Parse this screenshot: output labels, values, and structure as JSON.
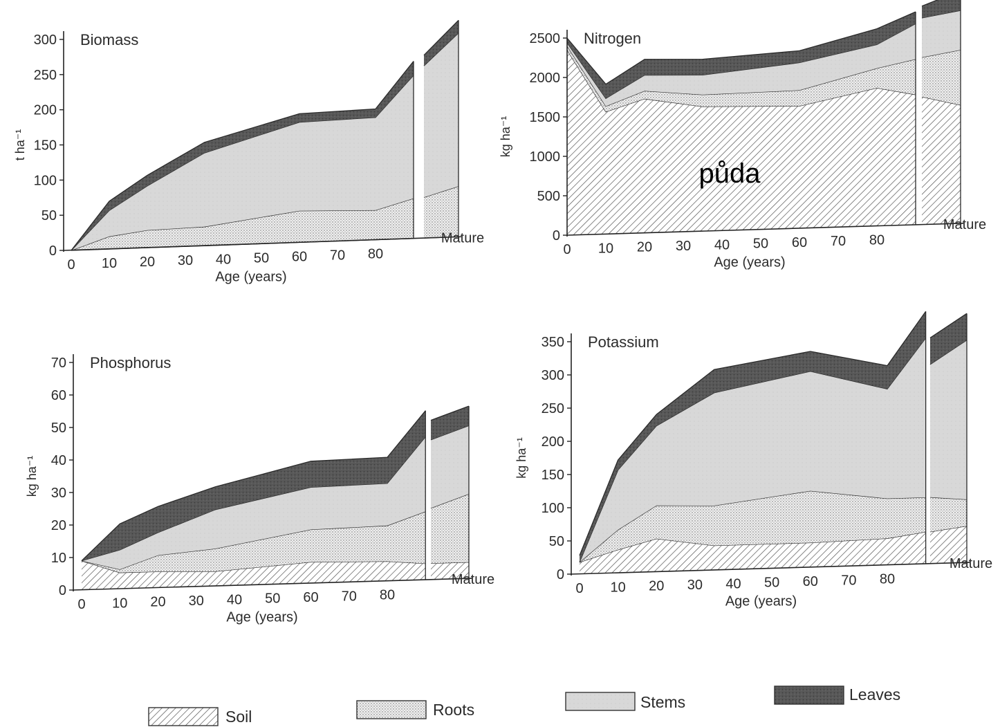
{
  "legend": {
    "items": [
      {
        "label": "Soil",
        "pattern": "soil"
      },
      {
        "label": "Roots",
        "pattern": "roots"
      },
      {
        "label": "Stems",
        "pattern": "stems"
      },
      {
        "label": "Leaves",
        "pattern": "leaves"
      }
    ]
  },
  "overlay_label": "půda",
  "colors": {
    "soil_stroke": "#5a5a5a",
    "roots_fill": "#ebebeb",
    "stems_fill": "#d6d6d6",
    "leaves_fill": "#555555",
    "axis": "#222222"
  },
  "chart_data": [
    {
      "type": "area",
      "title": "Biomass",
      "xlabel": "Age (years)",
      "ylabel": "t ha⁻¹",
      "x_ticks": [
        "0",
        "10",
        "20",
        "30",
        "40",
        "50",
        "60",
        "70",
        "80"
      ],
      "x_extra_label": "Mature",
      "y_ticks": [
        0,
        50,
        100,
        150,
        200,
        250,
        300
      ],
      "ylim": [
        0,
        300
      ],
      "stacked": true,
      "segments": [
        {
          "x": [
            0,
            10,
            20,
            35,
            60,
            80,
            90
          ],
          "series": [
            {
              "name": "Soil",
              "values": [
                0,
                0,
                0,
                0,
                0,
                0,
                0
              ]
            },
            {
              "name": "Roots",
              "values": [
                0,
                18,
                25,
                27,
                45,
                42,
                57
              ]
            },
            {
              "name": "Stems",
              "values": [
                0,
                37,
                63,
                105,
                126,
                132,
                175
              ]
            },
            {
              "name": "Leaves",
              "values": [
                0,
                13,
                15,
                15,
                12,
                12,
                20
              ]
            }
          ]
        },
        {
          "x": [
            "Mature-start",
            "Mature"
          ],
          "series": [
            {
              "name": "Soil",
              "values": [
                0,
                0
              ]
            },
            {
              "name": "Roots",
              "values": [
                58,
                72
              ]
            },
            {
              "name": "Stems",
              "values": [
                187,
                218
              ]
            },
            {
              "name": "Leaves",
              "values": [
                15,
                18
              ]
            }
          ]
        }
      ]
    },
    {
      "type": "area",
      "title": "Nitrogen",
      "xlabel": "Age (years)",
      "ylabel": "kg ha⁻¹",
      "x_ticks": [
        "0",
        "10",
        "20",
        "30",
        "40",
        "50",
        "60",
        "70",
        "80"
      ],
      "x_extra_label": "Mature",
      "y_ticks": [
        0,
        500,
        1000,
        1500,
        2000,
        2500
      ],
      "ylim": [
        0,
        2500
      ],
      "stacked": true,
      "segments": [
        {
          "x": [
            0,
            10,
            20,
            35,
            60,
            80,
            90
          ],
          "series": [
            {
              "name": "Soil",
              "values": [
                2350,
                1550,
                1700,
                1580,
                1550,
                1750,
                1650
              ]
            },
            {
              "name": "Roots",
              "values": [
                50,
                70,
                100,
                150,
                200,
                250,
                450
              ]
            },
            {
              "name": "Stems",
              "values": [
                40,
                100,
                200,
                250,
                350,
                300,
                450
              ]
            },
            {
              "name": "Leaves",
              "values": [
                60,
                180,
                200,
                200,
                150,
                200,
                150
              ]
            }
          ]
        },
        {
          "x": [
            "Mature-start",
            "Mature"
          ],
          "series": [
            {
              "name": "Soil",
              "values": [
                1620,
                1500
              ]
            },
            {
              "name": "Roots",
              "values": [
                500,
                700
              ]
            },
            {
              "name": "Stems",
              "values": [
                500,
                500
              ]
            },
            {
              "name": "Leaves",
              "values": [
                150,
                250
              ]
            }
          ]
        }
      ]
    },
    {
      "type": "area",
      "title": "Phosphorus",
      "xlabel": "Age (years)",
      "ylabel": "kg ha⁻¹",
      "x_ticks": [
        "0",
        "10",
        "20",
        "30",
        "40",
        "50",
        "60",
        "70",
        "80"
      ],
      "x_extra_label": "Mature",
      "y_ticks": [
        0,
        10,
        20,
        30,
        40,
        50,
        60,
        70
      ],
      "ylim": [
        0,
        70
      ],
      "stacked": true,
      "segments": [
        {
          "x": [
            0,
            10,
            20,
            35,
            60,
            80,
            90
          ],
          "series": [
            {
              "name": "Soil",
              "values": [
                9,
                5,
                5,
                4.5,
                6.5,
                6,
                5
              ]
            },
            {
              "name": "Roots",
              "values": [
                0,
                1,
                5,
                7,
                10,
                11,
                16
              ]
            },
            {
              "name": "Stems",
              "values": [
                0,
                6,
                7,
                12,
                13,
                13,
                23
              ]
            },
            {
              "name": "Leaves",
              "values": [
                0,
                8,
                8,
                7,
                8,
                8,
                8
              ]
            }
          ]
        },
        {
          "x": [
            "Mature-start",
            "Mature"
          ],
          "series": [
            {
              "name": "Soil",
              "values": [
                5,
                5
              ]
            },
            {
              "name": "Roots",
              "values": [
                17,
                21
              ]
            },
            {
              "name": "Stems",
              "values": [
                21,
                21
              ]
            },
            {
              "name": "Leaves",
              "values": [
                6,
                6
              ]
            }
          ]
        }
      ]
    },
    {
      "type": "area",
      "title": "Potassium",
      "xlabel": "Age (years)",
      "ylabel": "kg ha⁻¹",
      "x_ticks": [
        "0",
        "10",
        "20",
        "30",
        "40",
        "50",
        "60",
        "70",
        "80"
      ],
      "x_extra_label": "Mature",
      "y_ticks": [
        0,
        50,
        100,
        150,
        200,
        250,
        300,
        350
      ],
      "ylim": [
        0,
        350
      ],
      "stacked": true,
      "segments": [
        {
          "x": [
            0,
            10,
            20,
            35,
            60,
            80,
            90
          ],
          "series": [
            {
              "name": "Soil",
              "values": [
                18,
                35,
                50,
                37,
                37,
                40,
                48
              ]
            },
            {
              "name": "Roots",
              "values": [
                0,
                30,
                50,
                60,
                78,
                60,
                52
              ]
            },
            {
              "name": "Stems",
              "values": [
                0,
                90,
                120,
                170,
                180,
                165,
                240
              ]
            },
            {
              "name": "Leaves",
              "values": [
                10,
                15,
                17,
                35,
                30,
                35,
                40
              ]
            }
          ]
        },
        {
          "x": [
            "Mature-start",
            "Mature"
          ],
          "series": [
            {
              "name": "Soil",
              "values": [
                48,
                55
              ]
            },
            {
              "name": "Roots",
              "values": [
                52,
                40
              ]
            },
            {
              "name": "Stems",
              "values": [
                200,
                240
              ]
            },
            {
              "name": "Leaves",
              "values": [
                40,
                40
              ]
            }
          ]
        }
      ]
    }
  ]
}
